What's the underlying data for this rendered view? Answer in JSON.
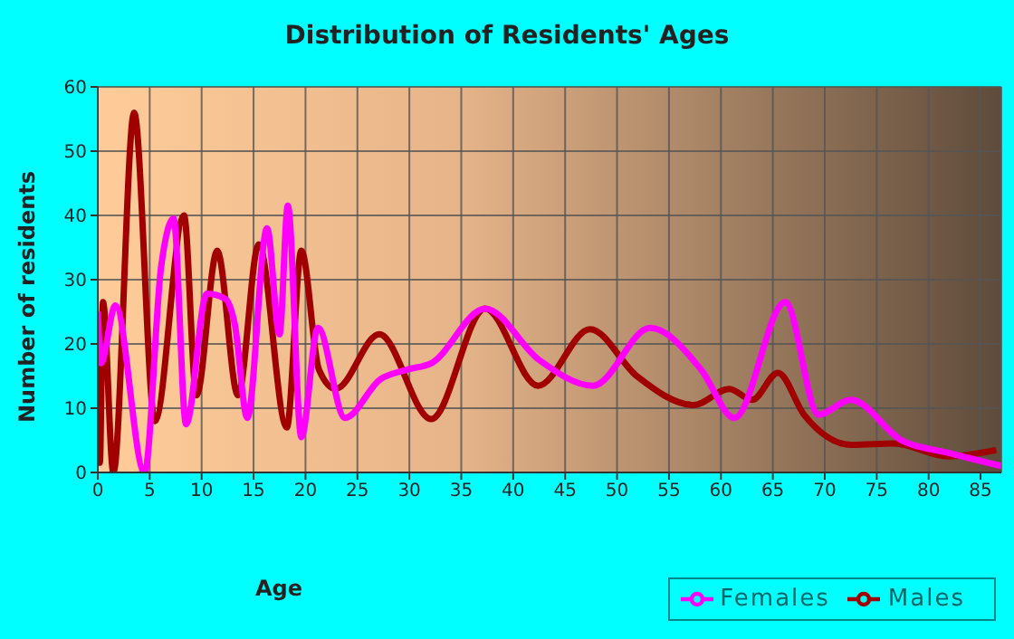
{
  "chart_data": {
    "type": "line",
    "title": "Distribution of Residents' Ages",
    "xlabel": "Age",
    "ylabel": "Number of residents",
    "xlim": [
      0,
      87
    ],
    "xticks": [
      0,
      5,
      10,
      15,
      20,
      25,
      30,
      35,
      40,
      45,
      50,
      55,
      60,
      65,
      70,
      75,
      80,
      85
    ],
    "ylim": [
      0,
      60
    ],
    "yticks": [
      0,
      10,
      20,
      30,
      40,
      50,
      60
    ],
    "grid": true,
    "legend": "bottom right",
    "marker": "none",
    "line_style": "solid",
    "series": [
      {
        "name": "Males",
        "color": "#a00000",
        "x": [
          0,
          0.2,
          0.5,
          1.5,
          3.5,
          5.5,
          8.3,
          9.5,
          11.5,
          13.5,
          15.5,
          18.2,
          19.6,
          21.3,
          22.9,
          27.1,
          32.1,
          37.3,
          42.4,
          47.4,
          51.9,
          57.4,
          60.8,
          63,
          65.5,
          68,
          72.6,
          76.7,
          81.9,
          86.5
        ],
        "values": [
          14,
          1.5,
          26.5,
          0,
          56,
          8,
          40,
          12,
          34.5,
          12,
          35.5,
          7,
          34.5,
          16,
          13,
          21.5,
          8.3,
          25.5,
          13.5,
          22.3,
          15,
          10.5,
          13,
          11.3,
          15.5,
          9,
          4.3,
          4.5,
          2.5,
          3.5
        ]
      },
      {
        "name": "Females",
        "color": "#ff00ff",
        "x": [
          0,
          0.3,
          1.7,
          4.5,
          6.1,
          7.3,
          8.5,
          10.5,
          12.3,
          13.2,
          14.4,
          16.3,
          17.5,
          18.3,
          19.6,
          21.2,
          23.8,
          27.2,
          29.8,
          32.1,
          37.3,
          42.5,
          47.7,
          53.2,
          58.1,
          61.3,
          66.2,
          69.4,
          72.5,
          77.4,
          82,
          87
        ],
        "values": [
          25,
          17,
          26,
          0,
          32,
          39.5,
          7.5,
          27.8,
          27,
          23,
          8.5,
          38,
          21.5,
          41.5,
          5.5,
          22.5,
          8.5,
          14.5,
          16,
          17,
          25.5,
          17.5,
          13.5,
          22.5,
          16,
          8.5,
          26.5,
          9,
          11.3,
          5,
          3,
          1
        ]
      }
    ]
  }
}
